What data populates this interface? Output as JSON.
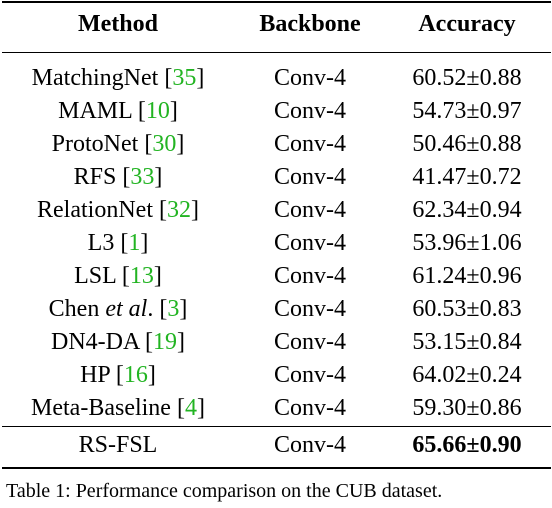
{
  "table": {
    "headers": {
      "method": "Method",
      "backbone": "Backbone",
      "accuracy": "Accuracy"
    },
    "rows": [
      {
        "method": "MatchingNet",
        "ref": "35",
        "backbone": "Conv-4",
        "accuracy": "60.52±0.88"
      },
      {
        "method": "MAML",
        "ref": "10",
        "backbone": "Conv-4",
        "accuracy": "54.73±0.97"
      },
      {
        "method": "ProtoNet",
        "ref": "30",
        "backbone": "Conv-4",
        "accuracy": "50.46±0.88"
      },
      {
        "method": "RFS",
        "ref": "33",
        "backbone": "Conv-4",
        "accuracy": "41.47±0.72"
      },
      {
        "method": "RelationNet",
        "ref": "32",
        "backbone": "Conv-4",
        "accuracy": "62.34±0.94"
      },
      {
        "method": "L3",
        "ref": "1",
        "backbone": "Conv-4",
        "accuracy": "53.96±1.06"
      },
      {
        "method": "LSL",
        "ref": "13",
        "backbone": "Conv-4",
        "accuracy": "61.24±0.96"
      },
      {
        "method_prefix": "Chen ",
        "method_italic": "et al",
        "method_suffix": ".",
        "ref": "3",
        "backbone": "Conv-4",
        "accuracy": "60.53±0.83"
      },
      {
        "method": "DN4-DA",
        "ref": "19",
        "backbone": "Conv-4",
        "accuracy": "53.15±0.84"
      },
      {
        "method": "HP",
        "ref": "16",
        "backbone": "Conv-4",
        "accuracy": "64.02±0.24"
      },
      {
        "method": "Meta-Baseline",
        "ref": "4",
        "backbone": "Conv-4",
        "accuracy": "59.30±0.86"
      }
    ],
    "ours": {
      "method": "RS-FSL",
      "backbone": "Conv-4",
      "accuracy": "65.66±0.90"
    }
  },
  "caption": "Table 1: Performance comparison on the CUB dataset.",
  "colors": {
    "citation": "#22b422",
    "text": "#000000"
  }
}
